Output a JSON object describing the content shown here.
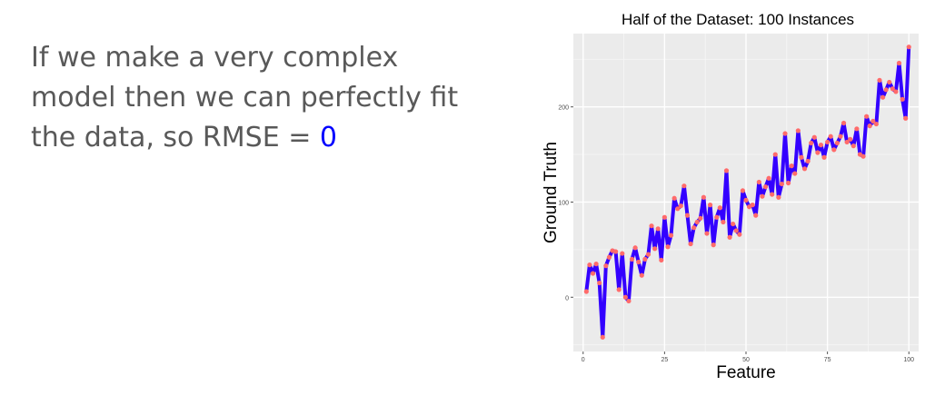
{
  "text_block": {
    "line1": "If we make a very complex",
    "line2": "model then we can perfectly fit",
    "line3_prefix": "the data, so RMSE = ",
    "line3_value": "0",
    "highlight_color": "#0000ff"
  },
  "chart_data": {
    "type": "line",
    "title": "Half of the Dataset: 100 Instances",
    "xlabel": "Feature",
    "ylabel": "Ground Truth",
    "xlim": [
      -3,
      103
    ],
    "ylim": [
      -57,
      277
    ],
    "xticks": [
      0,
      25,
      50,
      75,
      100
    ],
    "yticks": [
      0,
      100,
      200
    ],
    "grid": true,
    "panel_background": "#ebebeb",
    "line_color": "#3300ff",
    "point_color": "#ff6b6b",
    "series": [
      {
        "x": [
          1,
          2,
          3,
          4,
          5,
          6,
          7,
          8,
          9,
          10,
          11,
          12,
          13,
          14,
          15,
          16,
          17,
          18,
          19,
          20,
          21,
          22,
          23,
          24,
          25,
          26,
          27,
          28,
          29,
          30,
          31,
          32,
          33,
          34,
          35,
          36,
          37,
          38,
          39,
          40,
          41,
          42,
          43,
          44,
          45,
          46,
          47,
          48,
          49,
          50,
          51,
          52,
          53,
          54,
          55,
          56,
          57,
          58,
          59,
          60,
          61,
          62,
          63,
          64,
          65,
          66,
          67,
          68,
          69,
          70,
          71,
          72,
          73,
          74,
          75,
          76,
          77,
          78,
          79,
          80,
          81,
          82,
          83,
          84,
          85,
          86,
          87,
          88,
          89,
          90,
          91,
          92,
          93,
          94,
          95,
          96,
          97,
          98,
          99,
          100
        ],
        "y": [
          6,
          34,
          25,
          35,
          15,
          -42,
          33,
          42,
          49,
          48,
          8,
          46,
          0,
          -4,
          40,
          52,
          37,
          23,
          40,
          45,
          75,
          51,
          72,
          39,
          84,
          53,
          65,
          104,
          93,
          96,
          117,
          86,
          56,
          73,
          79,
          83,
          105,
          67,
          97,
          55,
          84,
          94,
          79,
          133,
          63,
          77,
          70,
          66,
          112,
          102,
          95,
          97,
          86,
          121,
          106,
          116,
          125,
          108,
          150,
          105,
          119,
          172,
          120,
          138,
          130,
          175,
          147,
          135,
          143,
          162,
          168,
          152,
          160,
          147,
          163,
          169,
          155,
          162,
          169,
          183,
          163,
          166,
          159,
          177,
          150,
          148,
          190,
          180,
          185,
          182,
          228,
          210,
          218,
          226,
          219,
          216,
          246,
          208,
          188,
          263
        ]
      }
    ]
  }
}
